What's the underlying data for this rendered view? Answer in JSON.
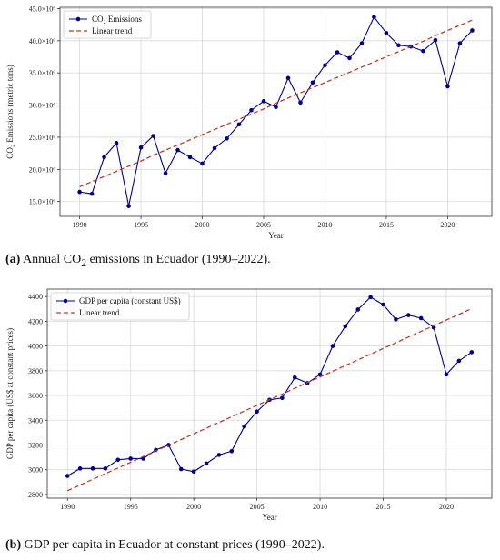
{
  "chart_data": [
    {
      "type": "line",
      "x": [
        1990,
        1991,
        1992,
        1993,
        1994,
        1995,
        1996,
        1997,
        1998,
        1999,
        2000,
        2001,
        2002,
        2003,
        2004,
        2005,
        2006,
        2007,
        2008,
        2009,
        2010,
        2011,
        2012,
        2013,
        2014,
        2015,
        2016,
        2017,
        2018,
        2019,
        2020,
        2021,
        2022
      ],
      "series": [
        {
          "name": "CO₂ Emissions",
          "kind": "line-marker",
          "color": "#00008b",
          "values": [
            16.5,
            16.2,
            21.9,
            24.1,
            14.3,
            23.4,
            25.2,
            19.4,
            23.0,
            21.9,
            20.9,
            23.3,
            24.8,
            27.0,
            29.2,
            30.6,
            29.7,
            34.2,
            30.4,
            33.5,
            36.2,
            38.2,
            37.3,
            39.6,
            43.7,
            41.2,
            39.3,
            39.1,
            38.4,
            40.1,
            32.9,
            39.6,
            41.6
          ]
        },
        {
          "name": "Linear trend",
          "kind": "dashed",
          "color": "#c0392b",
          "values": [
            17.3,
            18.1,
            18.9,
            19.7,
            20.5,
            21.3,
            22.2,
            23.0,
            23.8,
            24.6,
            25.4,
            26.2,
            27.0,
            27.8,
            28.6,
            29.4,
            30.3,
            31.1,
            31.9,
            32.7,
            33.5,
            34.3,
            35.1,
            35.9,
            36.7,
            37.5,
            38.3,
            39.1,
            39.9,
            40.8,
            41.6,
            42.4,
            43.2
          ]
        }
      ],
      "xlabel": "Year",
      "ylabel": "CO₂ Emissions (metric tons)",
      "xlim": [
        1988.4,
        2023.6
      ],
      "ylim": [
        12.7,
        45.2
      ],
      "xticks": [
        1990,
        1995,
        2000,
        2005,
        2010,
        2015,
        2020
      ],
      "yticks": [
        15,
        20,
        25,
        30,
        35,
        40,
        45
      ],
      "ytick_labels": [
        "15.0×10⁶",
        "20.0×10⁶",
        "25.0×10⁶",
        "30.0×10⁶",
        "35.0×10⁶",
        "40.0×10⁶",
        "45.0×10⁶"
      ],
      "grid": true,
      "legend": "top-left"
    },
    {
      "type": "line",
      "x": [
        1990,
        1991,
        1992,
        1993,
        1994,
        1995,
        1996,
        1997,
        1998,
        1999,
        2000,
        2001,
        2002,
        2003,
        2004,
        2005,
        2006,
        2007,
        2008,
        2009,
        2010,
        2011,
        2012,
        2013,
        2014,
        2015,
        2016,
        2017,
        2018,
        2019,
        2020,
        2021,
        2022
      ],
      "series": [
        {
          "name": "GDP per capita (constant US$)",
          "kind": "line-marker",
          "color": "#00008b",
          "values": [
            2950,
            3010,
            3010,
            3010,
            3080,
            3090,
            3090,
            3160,
            3200,
            3005,
            2985,
            3050,
            3120,
            3150,
            3350,
            3470,
            3565,
            3580,
            3745,
            3700,
            3770,
            4000,
            4160,
            4295,
            4395,
            4335,
            4215,
            4250,
            4225,
            4150,
            3770,
            3880,
            3950
          ]
        },
        {
          "name": "Linear trend",
          "kind": "dashed",
          "color": "#c0392b",
          "values": [
            2830,
            2876,
            2922,
            2968,
            3014,
            3060,
            3106,
            3152,
            3198,
            3244,
            3290,
            3336,
            3382,
            3428,
            3474,
            3520,
            3566,
            3612,
            3658,
            3704,
            3750,
            3796,
            3842,
            3888,
            3934,
            3980,
            4026,
            4072,
            4118,
            4164,
            4210,
            4256,
            4302
          ]
        }
      ],
      "xlabel": "Year",
      "ylabel": "GDP per capita (US$ at constant prices)",
      "xlim": [
        1988.4,
        2023.6
      ],
      "ylim": [
        2770,
        4460
      ],
      "xticks": [
        1990,
        1995,
        2000,
        2005,
        2010,
        2015,
        2020
      ],
      "yticks": [
        2800,
        3000,
        3200,
        3400,
        3600,
        3800,
        4000,
        4200,
        4400
      ],
      "ytick_labels": [
        "2800",
        "3000",
        "3200",
        "3400",
        "3600",
        "3800",
        "4000",
        "4200",
        "4400"
      ],
      "grid": true,
      "legend": "top-left"
    }
  ],
  "captions": {
    "a_label": "(a)",
    "a_pre": "Annual CO",
    "a_sub": "2",
    "a_post": " emissions in Ecuador (1990–2022).",
    "b_label": "(b)",
    "b_text": "GDP per capita in Ecuador at constant prices (1990–2022)."
  }
}
